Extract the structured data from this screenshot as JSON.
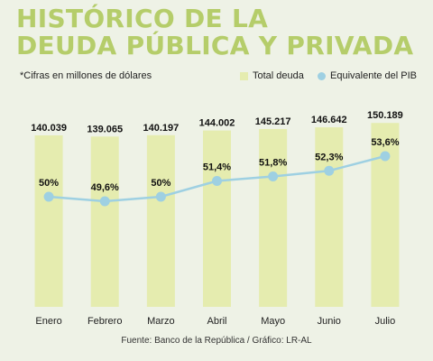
{
  "title_line1": "HISTÓRICO DE LA",
  "title_line2": "DEUDA PÚBLICA Y PRIVADA",
  "note": "*Cifras en millones de dólares",
  "legend_bar": "Total deuda",
  "legend_line": "Equivalente del PIB",
  "source": "Fuente: Banco de la República / Gráfico: LR-AL",
  "colors": {
    "bar": "#e5ecaf",
    "line": "#9ed0e2",
    "title": "#b5cd6a"
  },
  "chart_data": {
    "type": "bar",
    "categories": [
      "Enero",
      "Febrero",
      "Marzo",
      "Abril",
      "Mayo",
      "Junio",
      "Julio"
    ],
    "series": [
      {
        "name": "Total deuda",
        "values": [
          140039,
          139065,
          140197,
          144002,
          145217,
          146642,
          150189
        ],
        "labels": [
          "140.039",
          "139.065",
          "140.197",
          "144.002",
          "145.217",
          "146.642",
          "150.189"
        ]
      },
      {
        "name": "Equivalente del PIB",
        "type": "line",
        "values": [
          50,
          49.6,
          50,
          51.4,
          51.8,
          52.3,
          53.6
        ],
        "labels": [
          "50%",
          "49,6%",
          "50%",
          "51,4%",
          "51,8%",
          "52,3%",
          "53,6%"
        ]
      }
    ],
    "legend": "top-right",
    "grid": false
  }
}
